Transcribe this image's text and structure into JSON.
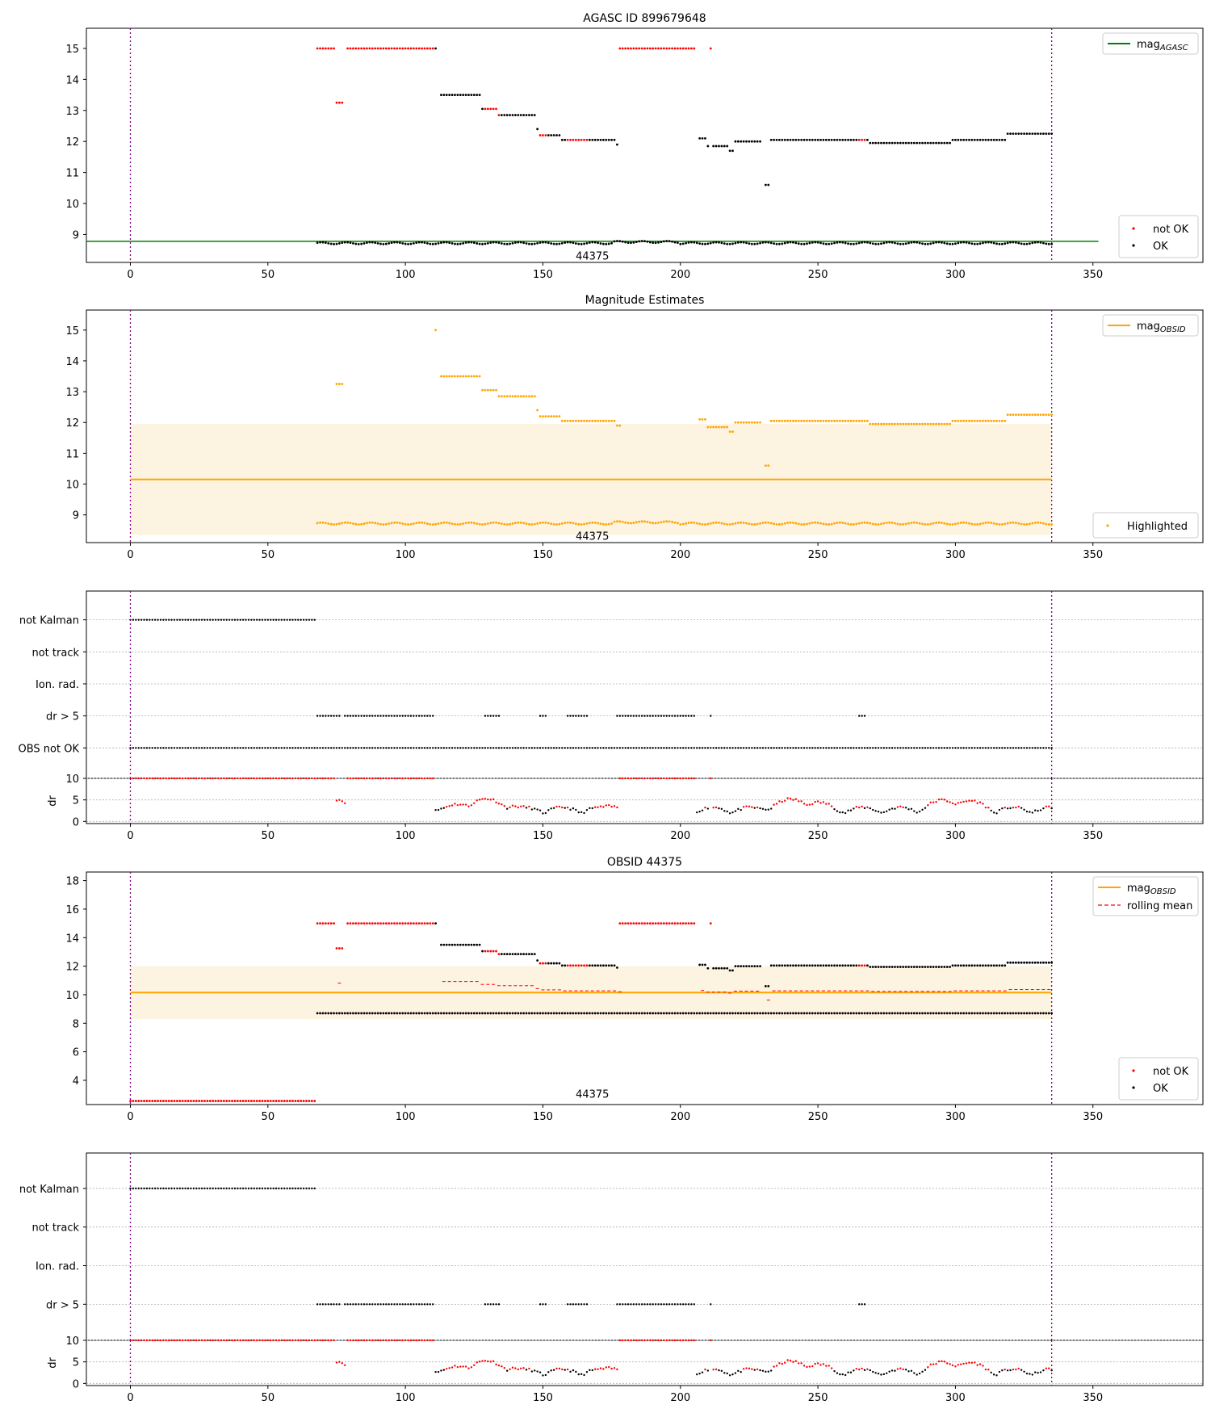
{
  "figure": {
    "background": "#ffffff"
  },
  "colors": {
    "ok": "#000000",
    "not_ok": "#ff0000",
    "agasc_line": "#008000",
    "obsid_line": "#ffa500",
    "band": "#fdf3e1",
    "vline": "#800080",
    "rolling": "#ff0000",
    "highlight": "#ffa500",
    "grid": "#b0b0b0"
  },
  "chart_data": [
    {
      "id": "agasc",
      "type": "scatter",
      "title": "AGASC ID 899679648",
      "xlim": [
        -16,
        390
      ],
      "ylim": [
        8.1,
        15.65
      ],
      "xticks": [
        0,
        50,
        100,
        150,
        200,
        250,
        300,
        350
      ],
      "yticks": [
        9,
        10,
        11,
        12,
        13,
        14,
        15
      ],
      "vlines": [
        0,
        335
      ],
      "hline": {
        "y": 8.78,
        "x": [
          -16,
          352
        ],
        "color": "#008000"
      },
      "annotation": {
        "text": "44375",
        "x": 168,
        "y": 8.3
      },
      "legend_line": {
        "label_main": "mag",
        "label_sub": "AGASC",
        "position": "upper right",
        "color": "#008000"
      },
      "legend_points": {
        "position": "lower right",
        "entries": [
          "not OK",
          "OK"
        ]
      }
    },
    {
      "id": "estimates",
      "type": "scatter",
      "title": "Magnitude Estimates",
      "xlim": [
        -16,
        390
      ],
      "ylim": [
        8.1,
        15.65
      ],
      "xticks": [
        0,
        50,
        100,
        150,
        200,
        250,
        300,
        350
      ],
      "yticks": [
        9,
        10,
        11,
        12,
        13,
        14,
        15
      ],
      "vlines": [
        0,
        335
      ],
      "band": {
        "x": [
          0,
          335
        ],
        "y": [
          8.35,
          11.95
        ]
      },
      "hline": {
        "y": 10.15,
        "x": [
          0,
          335
        ],
        "color": "#ffa500"
      },
      "annotation": {
        "text": "44375",
        "x": 168,
        "y": 8.3
      },
      "legend_line": {
        "label_main": "mag",
        "label_sub": "OBSID",
        "position": "upper right",
        "color": "#ffa500"
      },
      "legend_points": {
        "position": "lower right",
        "entries": [
          "Highlighted"
        ]
      }
    },
    {
      "id": "flags1",
      "type": "scatter",
      "xlim": [
        -16,
        390
      ],
      "categories": [
        "not Kalman",
        "not track",
        "Ion. rad.",
        "dr > 5",
        "OBS not OK"
      ],
      "vlines": [
        0,
        335
      ],
      "flag_ranges": {
        "not Kalman": [
          [
            0,
            67
          ]
        ],
        "dr > 5": [
          [
            68,
            76
          ],
          [
            78,
            110
          ],
          [
            129,
            134
          ],
          [
            149,
            151
          ],
          [
            159,
            166
          ],
          [
            177,
            205
          ],
          [
            211,
            211
          ],
          [
            265,
            267
          ]
        ],
        "OBS not OK": [
          [
            0,
            335
          ]
        ]
      },
      "dr": {
        "ylabel": "dr",
        "ylim": [
          -0.5,
          10
        ],
        "yticks": [
          0,
          5,
          10
        ]
      }
    },
    {
      "id": "obsid",
      "type": "scatter",
      "title": "OBSID 44375",
      "xlim": [
        -16,
        390
      ],
      "ylim": [
        2.3,
        18.6
      ],
      "xticks": [
        0,
        50,
        100,
        150,
        200,
        250,
        300,
        350
      ],
      "yticks": [
        4,
        6,
        8,
        10,
        12,
        14,
        16,
        18
      ],
      "vlines": [
        0,
        335
      ],
      "band": {
        "x": [
          0,
          335
        ],
        "y": [
          8.3,
          12.0
        ]
      },
      "hline": {
        "y": 10.15,
        "x": [
          0,
          335
        ],
        "color": "#ffa500"
      },
      "annotation": {
        "text": "44375",
        "x": 168,
        "y": 3.0
      },
      "legend_line": {
        "label_main": "mag",
        "label_sub": "OBSID",
        "position": "upper right",
        "color": "#ffa500"
      },
      "legend_rolling": {
        "label": "rolling mean",
        "color": "#ff0000"
      },
      "legend_points": {
        "position": "lower right",
        "entries": [
          "not OK",
          "OK"
        ]
      }
    },
    {
      "id": "flags2",
      "type": "scatter",
      "xlim": [
        -16,
        390
      ],
      "categories": [
        "not Kalman",
        "not track",
        "Ion. rad.",
        "dr > 5"
      ],
      "vlines": [
        0,
        335
      ],
      "flag_ranges": {
        "not Kalman": [
          [
            0,
            67
          ]
        ],
        "dr > 5": [
          [
            68,
            76
          ],
          [
            78,
            110
          ],
          [
            129,
            134
          ],
          [
            149,
            151
          ],
          [
            159,
            166
          ],
          [
            177,
            205
          ],
          [
            211,
            211
          ],
          [
            265,
            267
          ]
        ]
      },
      "dr": {
        "ylabel": "dr",
        "ylim": [
          -0.5,
          10
        ],
        "yticks": [
          0,
          5,
          10
        ]
      }
    }
  ]
}
